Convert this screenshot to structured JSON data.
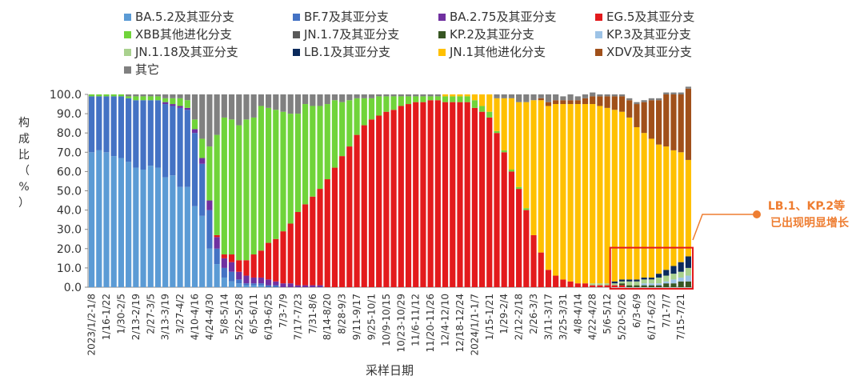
{
  "chart_data": {
    "type": "bar",
    "stacked": true,
    "ylabel": "构成比（%）",
    "xlabel": "采样日期",
    "ylim": [
      0,
      100
    ],
    "yticks": [
      "0.0",
      "10.0",
      "20.0",
      "30.0",
      "40.0",
      "50.0",
      "60.0",
      "70.0",
      "80.0",
      "90.0",
      "100.0"
    ],
    "legend_position": "top",
    "series": [
      {
        "name": "BA.5.2及其亚分支",
        "color": "#5b9bd5",
        "values": [
          70,
          71,
          70,
          68,
          67,
          65,
          62,
          61,
          63,
          62,
          57,
          58,
          52,
          52,
          42,
          37,
          20,
          12,
          5,
          3,
          2,
          1,
          1,
          1,
          0,
          0,
          0,
          0,
          0,
          0,
          0,
          0,
          0,
          0,
          0,
          0,
          0,
          0,
          0,
          0,
          0,
          0,
          0,
          0,
          0,
          0,
          0,
          0,
          0,
          0,
          0,
          0,
          0,
          0,
          0,
          0,
          0,
          0,
          0,
          0,
          0,
          0,
          0,
          0,
          0,
          0,
          0,
          0,
          0,
          0,
          0,
          0,
          0,
          0,
          0,
          0,
          0,
          0,
          0,
          0,
          0,
          0
        ]
      },
      {
        "name": "BF.7及其亚分支",
        "color": "#4472c4",
        "values": [
          29,
          28,
          29,
          31,
          32,
          33,
          35,
          36,
          34,
          35,
          38,
          36,
          41,
          40,
          38,
          27,
          20,
          8,
          5,
          5,
          2,
          1,
          1,
          1,
          1,
          1,
          0,
          0,
          0,
          0,
          0,
          0,
          0,
          0,
          0,
          0,
          0,
          0,
          0,
          0,
          0,
          0,
          0,
          0,
          0,
          0,
          0,
          0,
          0,
          0,
          0,
          0,
          0,
          0,
          0,
          0,
          0,
          0,
          0,
          0,
          0,
          0,
          0,
          0,
          0,
          0,
          0,
          0,
          0,
          0,
          0,
          0,
          0,
          0,
          0,
          0,
          0,
          0,
          0,
          0,
          0,
          0
        ]
      },
      {
        "name": "BA.2.75及其亚分支",
        "color": "#7030a0",
        "values": [
          0,
          0,
          0,
          0,
          0,
          0,
          0,
          0,
          0,
          0,
          1,
          1,
          1,
          1,
          2,
          3,
          5,
          6,
          5,
          5,
          4,
          4,
          3,
          3,
          3,
          2,
          2,
          2,
          1,
          1,
          1,
          1,
          0,
          0,
          0,
          0,
          0,
          0,
          0,
          0,
          0,
          0,
          0,
          0,
          0,
          0,
          0,
          0,
          0,
          0,
          0,
          0,
          0,
          0,
          0,
          0,
          0,
          0,
          0,
          0,
          0,
          0,
          0,
          0,
          0,
          0,
          0,
          0,
          0,
          0,
          0,
          0,
          0,
          0,
          0,
          0,
          0,
          0,
          0,
          0,
          0,
          0
        ]
      },
      {
        "name": "EG.5及其亚分支",
        "color": "#e31a1c",
        "values": [
          0,
          0,
          0,
          0,
          0,
          0,
          0,
          0,
          0,
          0,
          0,
          0,
          0,
          0,
          0,
          0,
          0,
          1,
          2,
          4,
          6,
          8,
          12,
          14,
          19,
          22,
          27,
          31,
          38,
          42,
          46,
          50,
          56,
          62,
          68,
          73,
          79,
          84,
          87,
          89,
          91,
          92,
          94,
          95,
          96,
          96,
          97,
          97,
          96,
          96,
          96,
          96,
          93,
          91,
          88,
          80,
          70,
          60,
          51,
          40,
          27,
          18,
          9,
          6,
          4,
          3,
          2,
          2,
          1,
          1,
          1,
          1,
          1,
          0,
          0,
          0,
          0,
          0,
          0,
          0,
          0,
          0
        ]
      },
      {
        "name": "XBB其他进化分支",
        "color": "#70d43a",
        "values": [
          1,
          1,
          1,
          1,
          1,
          1,
          2,
          2,
          2,
          2,
          2,
          3,
          4,
          4,
          5,
          10,
          28,
          52,
          71,
          70,
          70,
          73,
          71,
          75,
          70,
          67,
          62,
          57,
          51,
          52,
          47,
          43,
          39,
          35,
          28,
          24,
          19,
          14,
          11,
          10,
          8,
          7,
          5,
          4,
          3,
          3,
          2,
          2,
          3,
          3,
          3,
          3,
          4,
          3,
          3,
          1,
          1,
          1,
          1,
          1,
          0,
          0,
          0,
          0,
          0,
          0,
          0,
          0,
          0,
          0,
          0,
          0,
          0,
          0,
          0,
          0,
          0,
          0,
          0,
          0,
          0,
          0
        ]
      },
      {
        "name": "JN.1.7及其亚分支",
        "color": "#595959",
        "values": [
          0,
          0,
          0,
          0,
          0,
          0,
          0,
          0,
          0,
          0,
          0,
          0,
          0,
          0,
          0,
          0,
          0,
          0,
          0,
          0,
          0,
          0,
          0,
          0,
          0,
          0,
          0,
          0,
          0,
          0,
          0,
          0,
          0,
          0,
          0,
          0,
          0,
          0,
          0,
          0,
          0,
          0,
          0,
          0,
          0,
          0,
          0,
          0,
          0,
          0,
          0,
          0,
          0,
          0,
          0,
          0,
          0,
          0,
          0,
          0,
          0,
          0,
          0,
          0,
          0,
          0,
          0,
          0,
          0,
          0,
          0,
          0,
          0,
          0,
          0,
          0,
          0,
          0,
          0,
          0,
          0,
          0
        ]
      },
      {
        "name": "KP.2及其亚分支",
        "color": "#375623",
        "values": [
          0,
          0,
          0,
          0,
          0,
          0,
          0,
          0,
          0,
          0,
          0,
          0,
          0,
          0,
          0,
          0,
          0,
          0,
          0,
          0,
          0,
          0,
          0,
          0,
          0,
          0,
          0,
          0,
          0,
          0,
          0,
          0,
          0,
          0,
          0,
          0,
          0,
          0,
          0,
          0,
          0,
          0,
          0,
          0,
          0,
          0,
          0,
          0,
          0,
          0,
          0,
          0,
          0,
          0,
          0,
          0,
          0,
          0,
          0,
          0,
          0,
          0,
          0,
          0,
          0,
          0,
          0,
          0,
          0,
          0,
          0,
          0,
          1,
          1,
          1,
          1,
          1,
          1,
          2,
          2,
          3,
          3
        ]
      },
      {
        "name": "KP.3及其亚分支",
        "color": "#9dc3e6",
        "values": [
          0,
          0,
          0,
          0,
          0,
          0,
          0,
          0,
          0,
          0,
          0,
          0,
          0,
          0,
          0,
          0,
          0,
          0,
          0,
          0,
          0,
          0,
          0,
          0,
          0,
          0,
          0,
          0,
          0,
          0,
          0,
          0,
          0,
          0,
          0,
          0,
          0,
          0,
          0,
          0,
          0,
          0,
          0,
          0,
          0,
          0,
          0,
          0,
          0,
          0,
          0,
          0,
          0,
          0,
          0,
          0,
          0,
          0,
          0,
          0,
          0,
          0,
          0,
          0,
          0,
          0,
          0,
          0,
          0,
          0,
          0,
          0,
          0,
          0,
          0,
          1,
          1,
          1,
          1,
          2,
          2,
          3
        ]
      },
      {
        "name": "JN.1.18及其亚分支",
        "color": "#a9d18e",
        "values": [
          0,
          0,
          0,
          0,
          0,
          0,
          0,
          0,
          0,
          0,
          0,
          0,
          0,
          0,
          0,
          0,
          0,
          0,
          0,
          0,
          0,
          0,
          0,
          0,
          0,
          0,
          0,
          0,
          0,
          0,
          0,
          0,
          0,
          0,
          0,
          0,
          0,
          0,
          0,
          0,
          0,
          0,
          0,
          0,
          0,
          0,
          0,
          0,
          0,
          0,
          0,
          0,
          0,
          0,
          0,
          0,
          0,
          0,
          0,
          0,
          0,
          0,
          0,
          0,
          0,
          0,
          0,
          0,
          1,
          1,
          1,
          1,
          1,
          2,
          2,
          2,
          2,
          3,
          3,
          3,
          3,
          4
        ]
      },
      {
        "name": "LB.1及其亚分支",
        "color": "#0b2a5c",
        "values": [
          0,
          0,
          0,
          0,
          0,
          0,
          0,
          0,
          0,
          0,
          0,
          0,
          0,
          0,
          0,
          0,
          0,
          0,
          0,
          0,
          0,
          0,
          0,
          0,
          0,
          0,
          0,
          0,
          0,
          0,
          0,
          0,
          0,
          0,
          0,
          0,
          0,
          0,
          0,
          0,
          0,
          0,
          0,
          0,
          0,
          0,
          0,
          0,
          0,
          0,
          0,
          0,
          0,
          0,
          0,
          0,
          0,
          0,
          0,
          0,
          0,
          0,
          0,
          0,
          0,
          0,
          0,
          0,
          0,
          0,
          0,
          1,
          1,
          1,
          1,
          1,
          1,
          2,
          3,
          4,
          5,
          6
        ]
      },
      {
        "name": "JN.1其他进化分支",
        "color": "#ffc000",
        "values": [
          0,
          0,
          0,
          0,
          0,
          0,
          0,
          0,
          0,
          0,
          0,
          0,
          0,
          0,
          0,
          0,
          0,
          0,
          0,
          0,
          0,
          0,
          0,
          0,
          0,
          0,
          0,
          0,
          0,
          0,
          0,
          0,
          0,
          0,
          0,
          0,
          0,
          0,
          0,
          0,
          0,
          0,
          0,
          0,
          0,
          0,
          0,
          0,
          1,
          1,
          1,
          1,
          3,
          6,
          9,
          17,
          27,
          37,
          44,
          55,
          70,
          79,
          85,
          89,
          91,
          92,
          93,
          93,
          93,
          92,
          91,
          89,
          87,
          84,
          79,
          75,
          72,
          67,
          64,
          60,
          57,
          50
        ]
      },
      {
        "name": "XDV及其亚分支",
        "color": "#a0501a",
        "values": [
          0,
          0,
          0,
          0,
          0,
          0,
          0,
          0,
          0,
          0,
          0,
          0,
          0,
          0,
          0,
          0,
          0,
          0,
          0,
          0,
          0,
          0,
          0,
          0,
          0,
          0,
          0,
          0,
          0,
          0,
          0,
          0,
          0,
          0,
          0,
          0,
          0,
          0,
          0,
          0,
          0,
          0,
          0,
          0,
          0,
          0,
          0,
          0,
          0,
          0,
          0,
          0,
          0,
          0,
          0,
          0,
          0,
          0,
          0,
          0,
          0,
          1,
          2,
          2,
          2,
          2,
          2,
          3,
          4,
          5,
          6,
          7,
          8,
          9,
          12,
          16,
          20,
          23,
          27,
          29,
          30,
          37
        ]
      },
      {
        "name": "其它",
        "color": "#808080",
        "values": [
          0,
          0,
          0,
          0,
          0,
          1,
          1,
          1,
          1,
          1,
          2,
          2,
          2,
          3,
          13,
          23,
          27,
          21,
          12,
          13,
          16,
          13,
          12,
          6,
          7,
          8,
          9,
          10,
          10,
          5,
          6,
          6,
          5,
          3,
          4,
          3,
          2,
          2,
          2,
          1,
          1,
          1,
          1,
          1,
          1,
          1,
          1,
          1,
          0,
          0,
          0,
          0,
          0,
          0,
          0,
          2,
          2,
          2,
          4,
          4,
          3,
          2,
          4,
          3,
          2,
          3,
          2,
          2,
          2,
          1,
          1,
          1,
          1,
          1,
          1,
          1,
          1,
          1,
          1,
          1,
          1,
          1
        ]
      }
    ],
    "xticks": [
      "2023/1/2-1/8",
      "1/16-1/22",
      "1/30-2/5",
      "2/13-2/19",
      "2/27-3/5",
      "3/13-3/19",
      "3/27-4/2",
      "4/10-4/16",
      "4/24-4/30",
      "5/8-5/14",
      "5/22-5/28",
      "6/5-6/11",
      "6/19-6/25",
      "7/3-7/9",
      "7/17-7/23",
      "7/31-8/6",
      "8/14-8/20",
      "8/28-9/3",
      "9/11-9/17",
      "9/25-10/1",
      "10/9-10/15",
      "10/23-10/29",
      "11/6-11/12",
      "11/20-11/26",
      "12/4-12/10",
      "12/18-12/24",
      "2024/1/1-1/7",
      "1/15-1/21",
      "1/29-2/4",
      "2/12-2/18",
      "2/26-3/3",
      "3/11-3/17",
      "3/25-3/31",
      "4/8-4/14",
      "4/22-4/28",
      "5/6-5/12",
      "5/20-5/26",
      "6/3-6/9",
      "6/17-6/23",
      "7/1-7/7",
      "7/15-7/21"
    ],
    "annotation": {
      "line1": "LB.1、KP.2等",
      "line2": "已出现明显增长",
      "color": "#ee7d31"
    },
    "highlight_range": [
      71,
      81
    ]
  }
}
